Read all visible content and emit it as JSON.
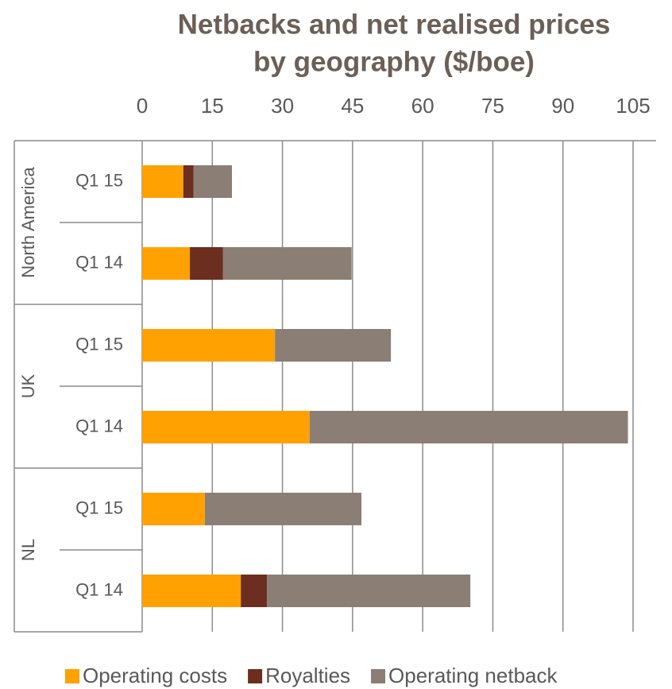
{
  "chart_data": {
    "type": "stacked-bar-horizontal",
    "title": [
      "Netbacks and net realised prices",
      "by geography ($/boe)"
    ],
    "groups": [
      {
        "name": "North America",
        "categories": [
          "Q1 15",
          "Q1 14"
        ]
      },
      {
        "name": "UK",
        "categories": [
          "Q1 15",
          "Q1 14"
        ]
      },
      {
        "name": "NL",
        "categories": [
          "Q1 15",
          "Q1 14"
        ]
      }
    ],
    "series": [
      {
        "name": "Operating costs",
        "color": "#ffa100",
        "values": [
          8.8,
          10.2,
          28.4,
          35.8,
          13.4,
          21.1
        ]
      },
      {
        "name": "Royalties",
        "color": "#6b2e1f",
        "values": [
          2.2,
          7.1,
          0,
          0,
          0,
          5.6
        ]
      },
      {
        "name": "Operating netback",
        "color": "#8b7e74",
        "values": [
          8.2,
          27.5,
          24.8,
          68.1,
          33.5,
          43.5
        ]
      }
    ],
    "xlim": [
      0,
      105
    ],
    "xticks": [
      0,
      15,
      30,
      45,
      60,
      75,
      90,
      105
    ],
    "grid": true,
    "legend": "bottom"
  }
}
